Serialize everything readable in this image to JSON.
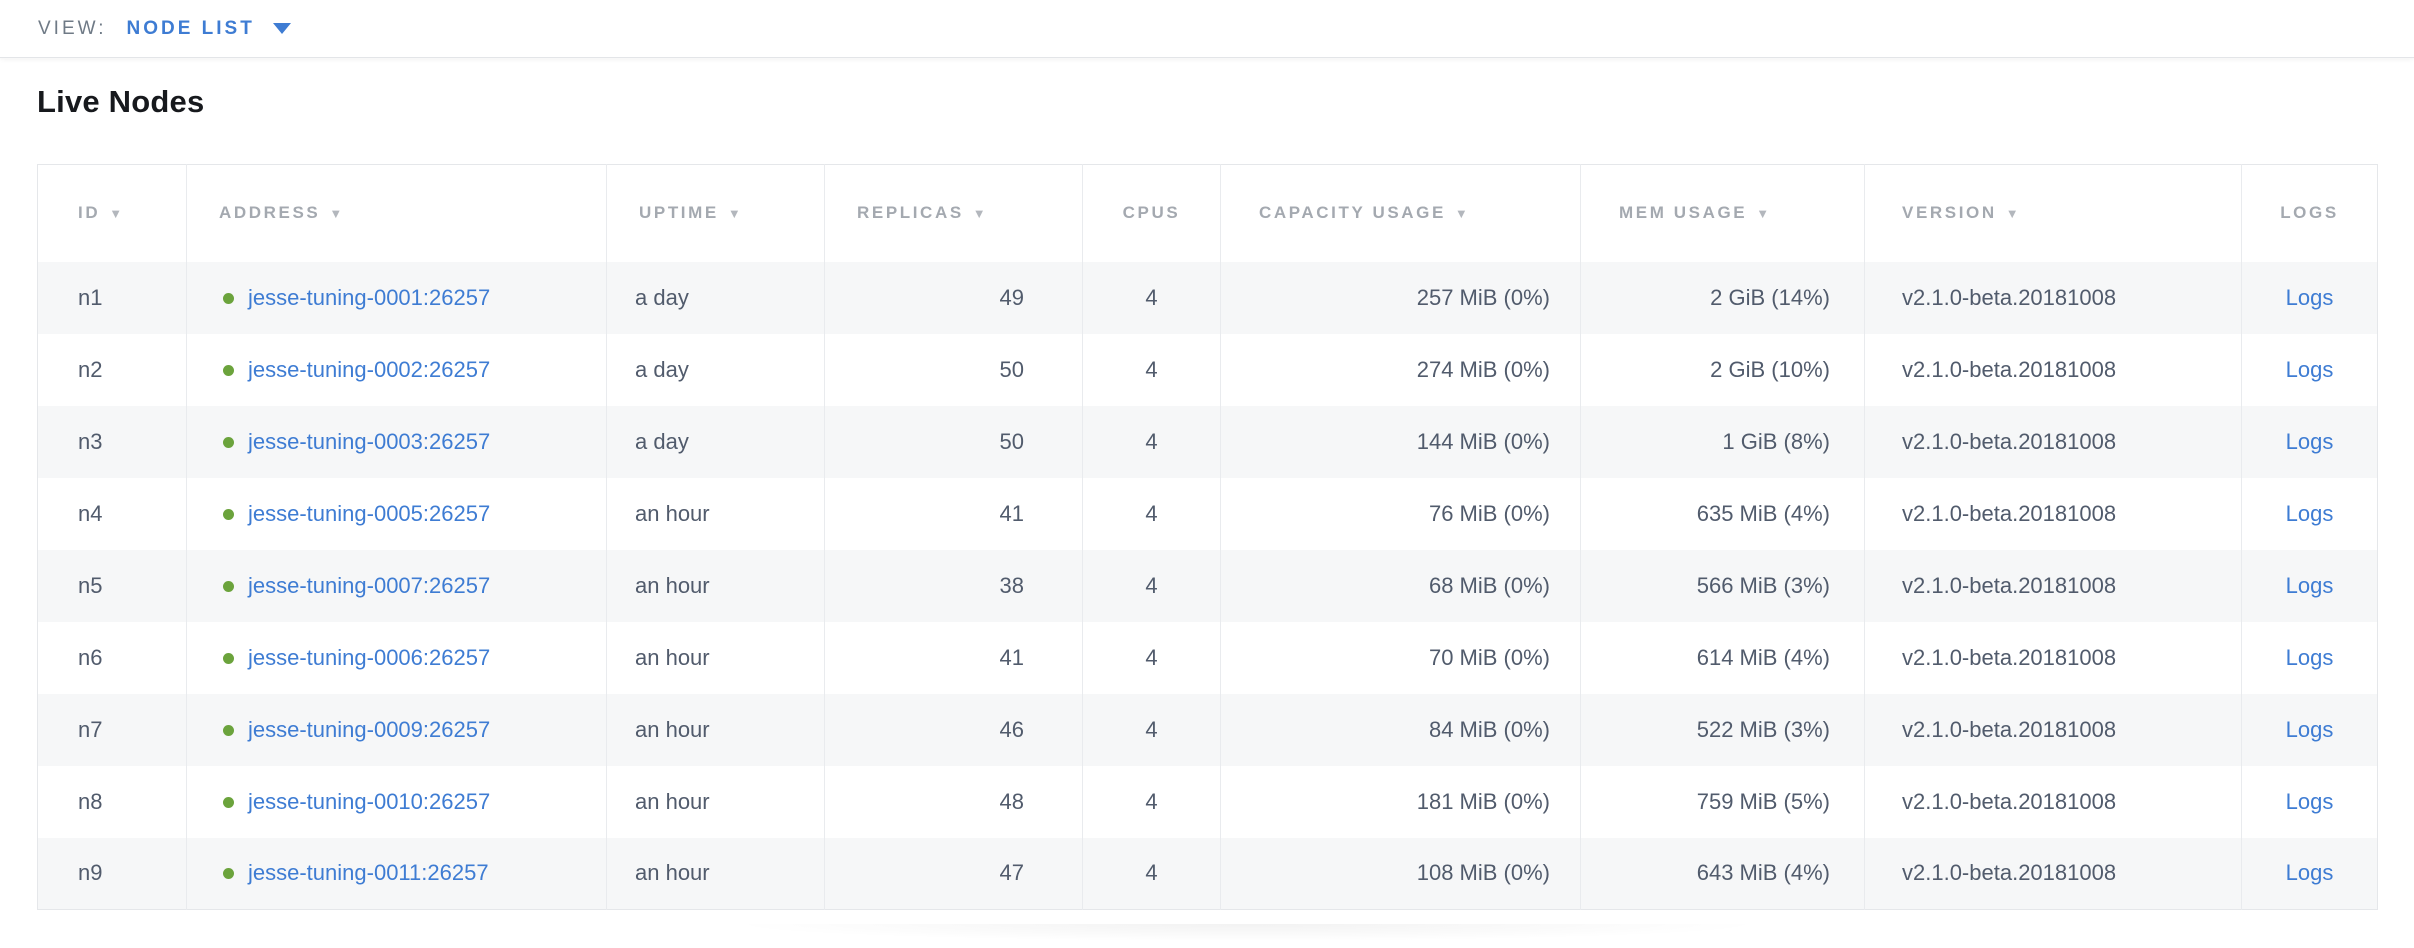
{
  "view_bar": {
    "label": "VIEW:",
    "selected": "NODE LIST"
  },
  "page": {
    "title": "Live Nodes"
  },
  "icons": {
    "sort_descending": "▼",
    "dropdown_caret": "triangle-down"
  },
  "colors": {
    "link_blue": "#3e7cd3",
    "healthy_node_dot_green": "#6ba33c",
    "header_gray": "#a4a9b0",
    "body_text": "#515b6c",
    "row_stripe": "#f6f7f8"
  },
  "table": {
    "columns": [
      {
        "key": "id",
        "label": "ID",
        "sortable": true
      },
      {
        "key": "address",
        "label": "ADDRESS",
        "sortable": true
      },
      {
        "key": "uptime",
        "label": "UPTIME",
        "sortable": true
      },
      {
        "key": "replicas",
        "label": "REPLICAS",
        "sortable": true
      },
      {
        "key": "cpus",
        "label": "CPUS",
        "sortable": false
      },
      {
        "key": "capacity",
        "label": "CAPACITY USAGE",
        "sortable": true
      },
      {
        "key": "mem",
        "label": "MEM USAGE",
        "sortable": true
      },
      {
        "key": "version",
        "label": "VERSION",
        "sortable": true
      },
      {
        "key": "logs",
        "label": "LOGS",
        "sortable": false
      }
    ],
    "rows": [
      {
        "id": "n1",
        "status": "healthy",
        "address": "jesse-tuning-0001:26257",
        "uptime": "a day",
        "replicas": "49",
        "cpus": "4",
        "capacity": "257 MiB (0%)",
        "mem": "2 GiB (14%)",
        "version": "v2.1.0-beta.20181008",
        "logs": "Logs"
      },
      {
        "id": "n2",
        "status": "healthy",
        "address": "jesse-tuning-0002:26257",
        "uptime": "a day",
        "replicas": "50",
        "cpus": "4",
        "capacity": "274 MiB (0%)",
        "mem": "2 GiB (10%)",
        "version": "v2.1.0-beta.20181008",
        "logs": "Logs"
      },
      {
        "id": "n3",
        "status": "healthy",
        "address": "jesse-tuning-0003:26257",
        "uptime": "a day",
        "replicas": "50",
        "cpus": "4",
        "capacity": "144 MiB (0%)",
        "mem": "1 GiB (8%)",
        "version": "v2.1.0-beta.20181008",
        "logs": "Logs"
      },
      {
        "id": "n4",
        "status": "healthy",
        "address": "jesse-tuning-0005:26257",
        "uptime": "an hour",
        "replicas": "41",
        "cpus": "4",
        "capacity": "76 MiB (0%)",
        "mem": "635 MiB (4%)",
        "version": "v2.1.0-beta.20181008",
        "logs": "Logs"
      },
      {
        "id": "n5",
        "status": "healthy",
        "address": "jesse-tuning-0007:26257",
        "uptime": "an hour",
        "replicas": "38",
        "cpus": "4",
        "capacity": "68 MiB (0%)",
        "mem": "566 MiB (3%)",
        "version": "v2.1.0-beta.20181008",
        "logs": "Logs"
      },
      {
        "id": "n6",
        "status": "healthy",
        "address": "jesse-tuning-0006:26257",
        "uptime": "an hour",
        "replicas": "41",
        "cpus": "4",
        "capacity": "70 MiB (0%)",
        "mem": "614 MiB (4%)",
        "version": "v2.1.0-beta.20181008",
        "logs": "Logs"
      },
      {
        "id": "n7",
        "status": "healthy",
        "address": "jesse-tuning-0009:26257",
        "uptime": "an hour",
        "replicas": "46",
        "cpus": "4",
        "capacity": "84 MiB (0%)",
        "mem": "522 MiB (3%)",
        "version": "v2.1.0-beta.20181008",
        "logs": "Logs"
      },
      {
        "id": "n8",
        "status": "healthy",
        "address": "jesse-tuning-0010:26257",
        "uptime": "an hour",
        "replicas": "48",
        "cpus": "4",
        "capacity": "181 MiB (0%)",
        "mem": "759 MiB (5%)",
        "version": "v2.1.0-beta.20181008",
        "logs": "Logs"
      },
      {
        "id": "n9",
        "status": "healthy",
        "address": "jesse-tuning-0011:26257",
        "uptime": "an hour",
        "replicas": "47",
        "cpus": "4",
        "capacity": "108 MiB (0%)",
        "mem": "643 MiB (4%)",
        "version": "v2.1.0-beta.20181008",
        "logs": "Logs"
      }
    ]
  }
}
